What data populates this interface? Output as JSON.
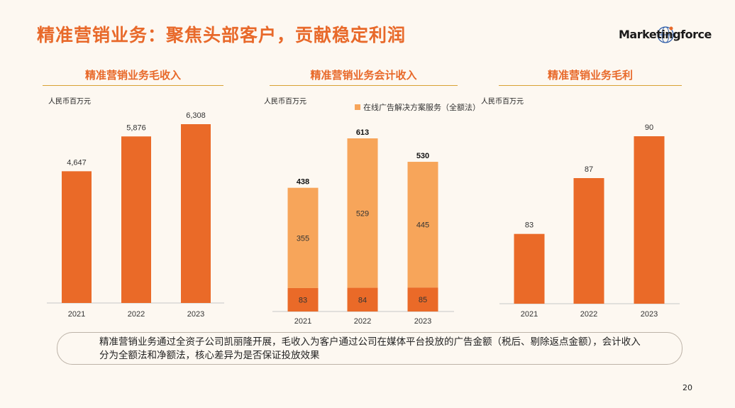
{
  "title": "精准营销业务：聚焦头部客户，贡献稳定利润",
  "logo": "Marketingforce",
  "unit": "人民币百万元",
  "note": "精准营销业务通过全资子公司凯丽隆开展，毛收入为客户通过公司在媒体平台投放的广告金额（税后、剔除返点金额），会计收入分为全额法和净额法，核心差异为是否保证投放效果",
  "page_number": "20",
  "colors": {
    "accent": "#e8692a",
    "bar": "#ea6a28",
    "bar_light": "#f7a55a",
    "line": "#d8a233"
  },
  "chart_data": [
    {
      "type": "bar",
      "title": "精准营销业务毛收入",
      "ylabel": "人民币百万元",
      "categories": [
        "2021",
        "2022",
        "2023"
      ],
      "values": [
        4647,
        5876,
        6308
      ],
      "labels": [
        "4,647",
        "5,876",
        "6,308"
      ]
    },
    {
      "type": "bar",
      "stacked": true,
      "title": "精准营销业务会计收入",
      "ylabel": "人民币百万元",
      "categories": [
        "2021",
        "2022",
        "2023"
      ],
      "series": [
        {
          "name": "",
          "values": [
            83,
            84,
            85
          ]
        },
        {
          "name": "在线广告解决方案服务（全额法）",
          "values": [
            355,
            529,
            445
          ]
        }
      ],
      "totals": [
        438,
        613,
        530
      ],
      "legend": "top-right"
    },
    {
      "type": "bar",
      "title": "精准营销业务毛利",
      "ylabel": "人民币百万元",
      "categories": [
        "2021",
        "2022",
        "2023"
      ],
      "values": [
        83,
        87,
        90
      ]
    }
  ]
}
